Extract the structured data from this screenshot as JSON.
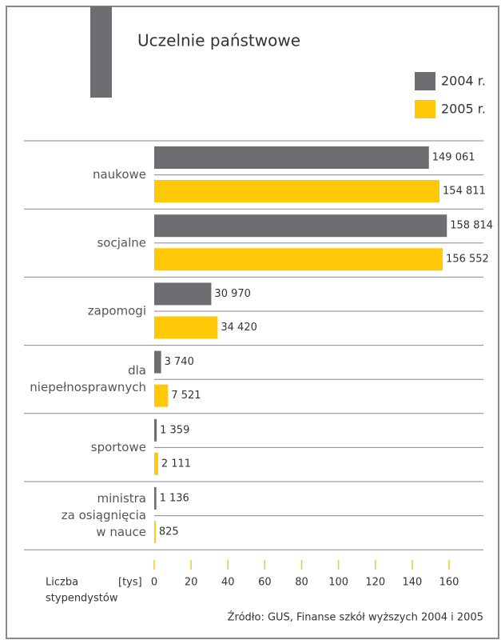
{
  "chart_data": {
    "type": "hbar",
    "title": "Uczelnie państwowe",
    "categories": [
      [
        "naukowe"
      ],
      [
        "socjalne"
      ],
      [
        "zapomogi"
      ],
      [
        "dla",
        "niepełnosprawnych"
      ],
      [
        "sportowe"
      ],
      [
        "ministra",
        "za osiągnięcia",
        "w nauce"
      ]
    ],
    "series": [
      {
        "name": "2004 r.",
        "color": "#6d6e71",
        "values": [
          149.061,
          158.814,
          30.97,
          3.74,
          1.359,
          1.136
        ],
        "value_labels": [
          "149 061",
          "158 814",
          "30 970",
          "3 740",
          "1 359",
          "1 136"
        ]
      },
      {
        "name": "2005 r.",
        "color": "#ffc907",
        "values": [
          154.811,
          156.552,
          34.42,
          7.521,
          2.111,
          0.825
        ],
        "value_labels": [
          "154 811",
          "156 552",
          "34 420",
          "7 521",
          "2 111",
          "825"
        ]
      }
    ],
    "xlim": [
      0,
      160
    ],
    "xticks": [
      0,
      20,
      40,
      60,
      80,
      100,
      120,
      140,
      160
    ],
    "x_label": [
      "Liczba",
      "stypendystów"
    ],
    "x_unit": "[tys]",
    "source": "Źródło: GUS, Finanse szkół wyższych 2004 i 2005"
  }
}
